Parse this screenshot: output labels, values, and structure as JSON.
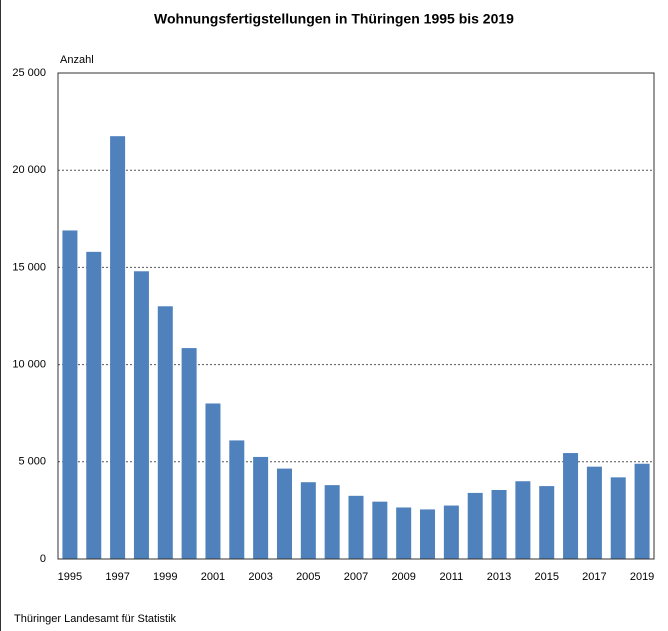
{
  "chart_data": {
    "type": "bar",
    "title": "Wohnungsfertigstellungen in Thüringen 1995 bis 2019",
    "y_label": "Anzahl",
    "source": "Thüringer Landesamt für Statistik",
    "categories": [
      1995,
      null,
      1997,
      null,
      1999,
      null,
      2001,
      null,
      2003,
      null,
      2005,
      null,
      2007,
      null,
      2009,
      null,
      2011,
      null,
      2013,
      null,
      2015,
      null,
      2017,
      null,
      2019
    ],
    "values": [
      16900,
      15800,
      21750,
      14800,
      13000,
      10850,
      8000,
      6100,
      5250,
      4650,
      3950,
      3800,
      3250,
      2950,
      2650,
      2550,
      2750,
      3400,
      3550,
      4000,
      3750,
      5450,
      4750,
      4200,
      4900
    ],
    "color": "#4f81bd",
    "ylim": [
      0,
      25000
    ],
    "yticks": [
      0,
      {
        "value": 5000,
        "label": "5 000"
      },
      {
        "value": 10000,
        "label": "10 000"
      },
      {
        "value": 15000,
        "label": "15 000"
      },
      {
        "value": 20000,
        "label": "20 000"
      },
      {
        "value": 25000,
        "label": "25 000"
      }
    ],
    "grid": true
  }
}
